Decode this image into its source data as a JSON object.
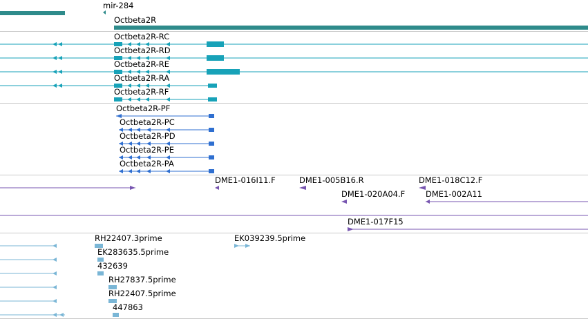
{
  "colors": {
    "gene": "#2e8b8b",
    "transcript": "#17a2b8",
    "protein": "#2f6fd0",
    "clone": "#7755b0",
    "est": "#7ab6d6",
    "separator": "#c8c8c8"
  },
  "tracks": {
    "genes": {
      "mirna_label": "mir-284",
      "gene_label": "Octbeta2R"
    },
    "transcripts": {
      "labels": [
        "Octbeta2R-RC",
        "Octbeta2R-RD",
        "Octbeta2R-RE",
        "Octbeta2R-RA",
        "Octbeta2R-RF"
      ]
    },
    "proteins": {
      "labels": [
        "Octbeta2R-PF",
        "Octbeta2R-PC",
        "Octbeta2R-PD",
        "Octbeta2R-PE",
        "Octbeta2R-PA"
      ]
    },
    "clones": {
      "labels": [
        "DME1-016I11.F",
        "DME1-005B16.R",
        "DME1-018C12.F",
        "DME1-020A04.F",
        "DME1-002A11",
        "DME1-017F15"
      ]
    },
    "ests": {
      "labels": [
        "RH22407.3prime",
        "EK039239.5prime",
        "EK283635.5prime",
        "432639",
        "RH27837.5prime",
        "RH22407.5prime",
        "447863"
      ]
    }
  }
}
